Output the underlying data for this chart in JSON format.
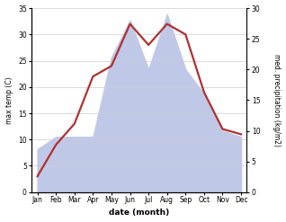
{
  "months": [
    "Jan",
    "Feb",
    "Mar",
    "Apr",
    "May",
    "Jun",
    "Jul",
    "Aug",
    "Sep",
    "Oct",
    "Nov",
    "Dec"
  ],
  "temp": [
    3,
    9,
    13,
    22,
    24,
    32,
    28,
    32,
    30,
    19,
    12,
    11
  ],
  "precip": [
    7,
    9,
    9,
    9,
    22,
    28,
    20,
    29,
    20,
    16,
    10,
    9
  ],
  "temp_ylim": [
    0,
    35
  ],
  "precip_ylim": [
    0,
    30
  ],
  "temp_yticks": [
    0,
    5,
    10,
    15,
    20,
    25,
    30,
    35
  ],
  "precip_yticks": [
    0,
    5,
    10,
    15,
    20,
    25,
    30
  ],
  "temp_color": "#b03030",
  "precip_fill_color": "#c0c8e8",
  "precip_edge_color": "#9aa8d0",
  "ylabel_left": "max temp (C)",
  "ylabel_right": "med. precipitation (kg/m2)",
  "xlabel": "date (month)",
  "temp_linewidth": 1.6,
  "background_color": "#ffffff"
}
